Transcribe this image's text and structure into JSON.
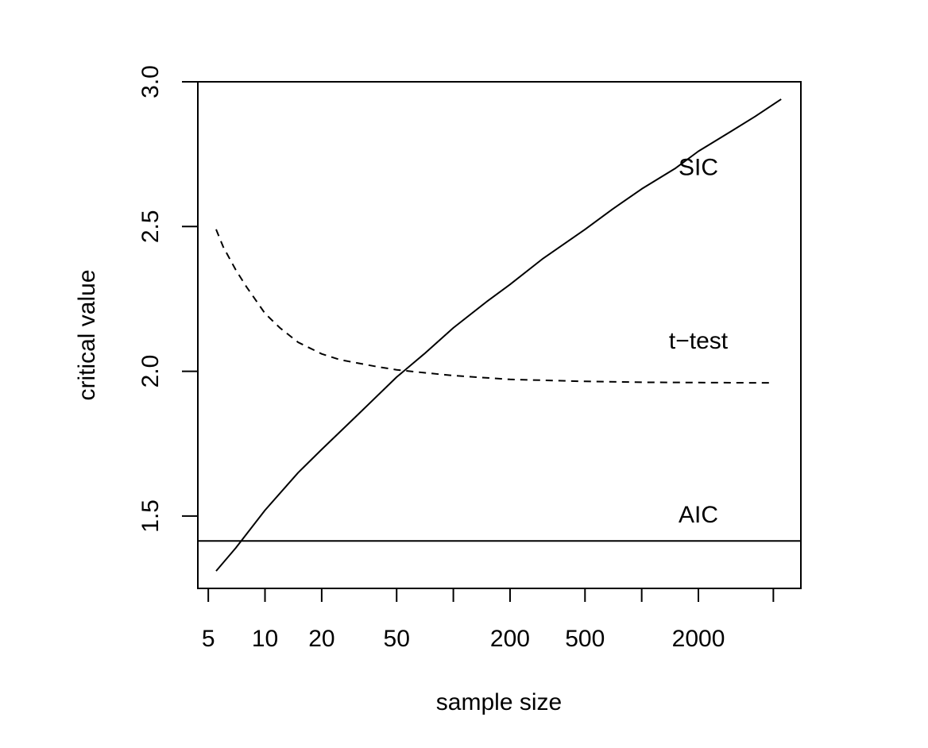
{
  "chart_data": {
    "type": "line",
    "title": "",
    "xlabel": "sample size",
    "ylabel": "critical value",
    "xscale": "log",
    "xlim": [
      4.4,
      7000
    ],
    "ylim": [
      1.25,
      3.0
    ],
    "grid": false,
    "legend": "none",
    "x_ticks": [
      5,
      10,
      20,
      50,
      100,
      200,
      500,
      1000,
      2000,
      5000
    ],
    "x_tick_labels": [
      "5",
      "10",
      "20",
      "50",
      "",
      "200",
      "500",
      "",
      "2000",
      ""
    ],
    "y_ticks": [
      1.5,
      2.0,
      2.5,
      3.0
    ],
    "y_tick_labels": [
      "1.5",
      "2.0",
      "2.5",
      "3.0"
    ],
    "series": [
      {
        "name": "SIC",
        "line_style": "solid",
        "x": [
          5.5,
          7,
          10,
          15,
          20,
          30,
          50,
          70,
          100,
          150,
          200,
          300,
          500,
          700,
          1000,
          1500,
          2000,
          3000,
          4000,
          5500
        ],
        "y": [
          1.31,
          1.39,
          1.52,
          1.65,
          1.73,
          1.84,
          1.98,
          2.06,
          2.15,
          2.24,
          2.3,
          2.39,
          2.49,
          2.56,
          2.63,
          2.7,
          2.76,
          2.83,
          2.88,
          2.94
        ]
      },
      {
        "name": "t-test",
        "line_style": "dashed",
        "x": [
          5.5,
          6,
          7,
          8,
          10,
          12,
          15,
          20,
          25,
          30,
          40,
          50,
          70,
          100,
          200,
          500,
          1000,
          2000,
          5000
        ],
        "y": [
          2.49,
          2.43,
          2.35,
          2.29,
          2.2,
          2.15,
          2.1,
          2.06,
          2.04,
          2.03,
          2.015,
          2.005,
          1.995,
          1.985,
          1.972,
          1.965,
          1.962,
          1.961,
          1.96
        ]
      },
      {
        "name": "AIC",
        "line_style": "solid",
        "x": [
          4.4,
          7000
        ],
        "y": [
          1.414,
          1.414
        ]
      }
    ],
    "annotations": [
      {
        "text": "SIC",
        "x": 2000,
        "y": 2.7
      },
      {
        "text": "t−test",
        "x": 2000,
        "y": 2.1
      },
      {
        "text": "AIC",
        "x": 2000,
        "y": 1.5
      }
    ],
    "colors": {
      "line": "#000000",
      "frame": "#000000",
      "background": "#ffffff"
    }
  }
}
